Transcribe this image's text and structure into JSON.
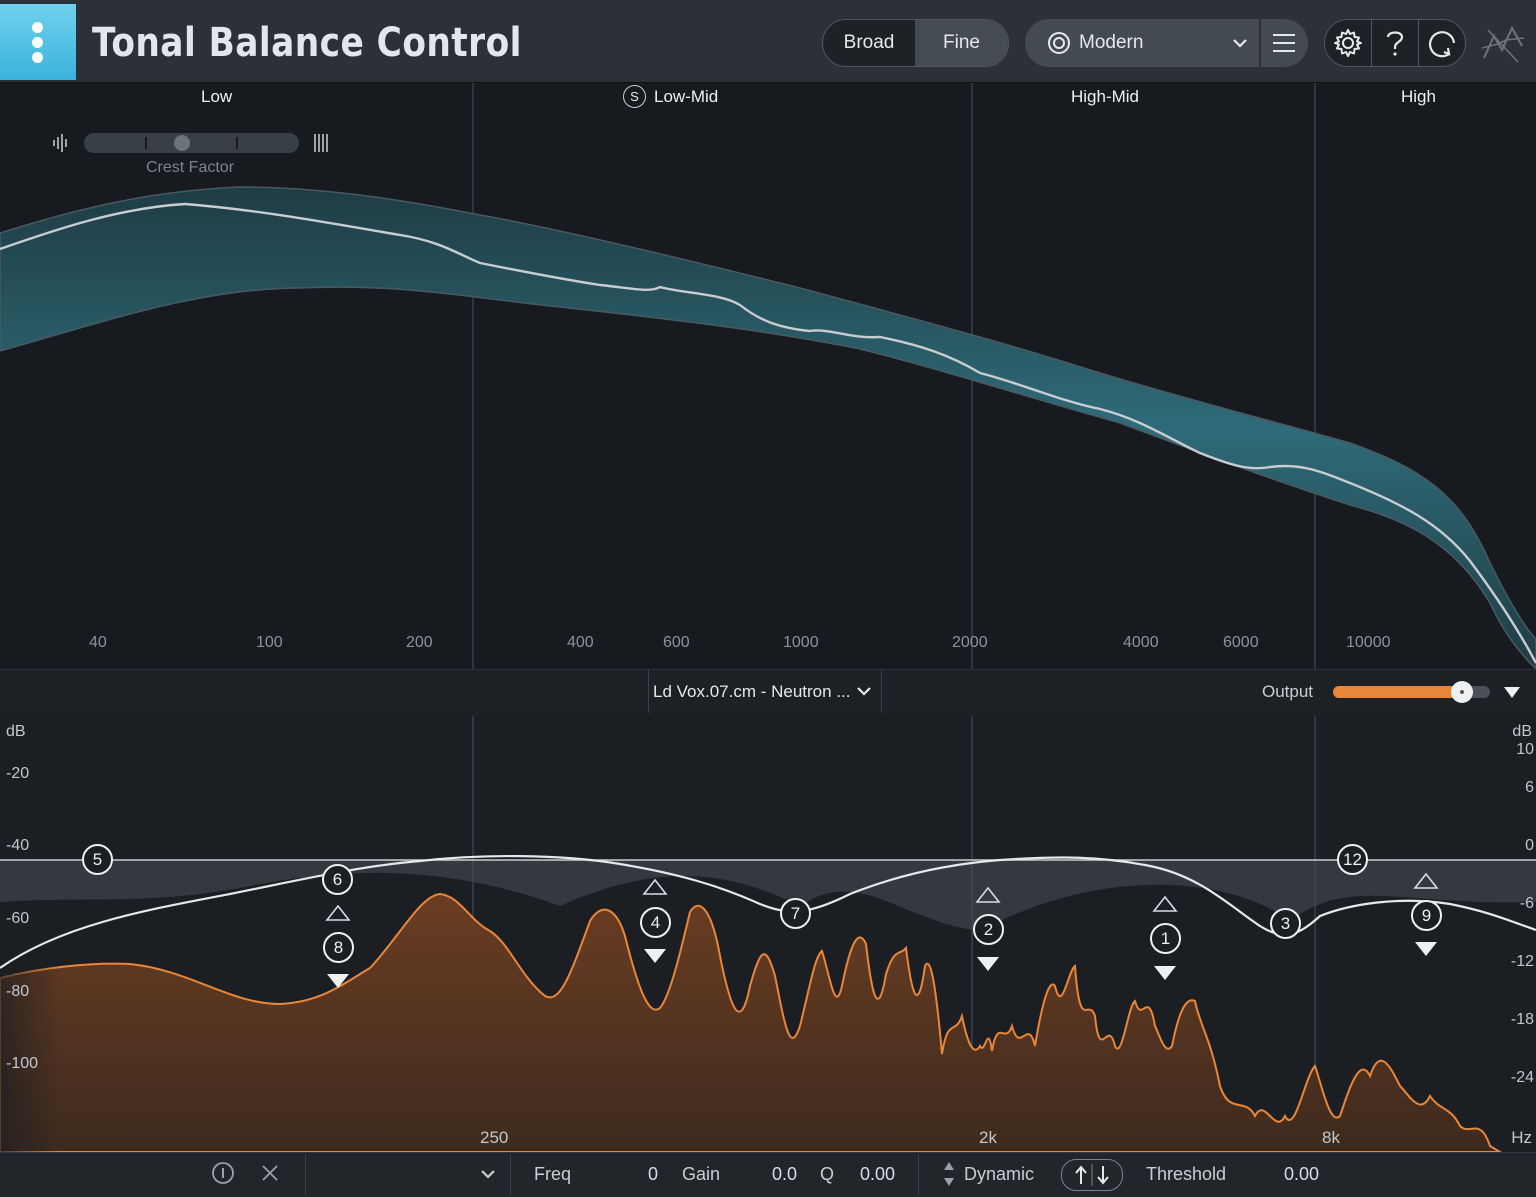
{
  "header": {
    "title": "Tonal Balance Control",
    "view_mode": {
      "options": [
        "Broad",
        "Fine"
      ],
      "selected": "Fine"
    },
    "target_preset": "Modern"
  },
  "bands": [
    "Low",
    "Low-Mid",
    "High-Mid",
    "High"
  ],
  "solo_badge": "S",
  "crest_factor": {
    "label": "Crest Factor",
    "value": 0.45
  },
  "freq_ticks": [
    "40",
    "100",
    "200",
    "400",
    "600",
    "1000",
    "2000",
    "4000",
    "6000",
    "10000"
  ],
  "track": {
    "name": "Ld Vox.07.cm - Neutron ..."
  },
  "output": {
    "label": "Output",
    "value": 0.82
  },
  "eq": {
    "db_left": {
      "label": "dB",
      "ticks": [
        "-20",
        "-40",
        "-60",
        "-80",
        "-100"
      ]
    },
    "db_right": {
      "label": "dB",
      "ticks": [
        "10",
        "6",
        "0",
        "-6",
        "-12",
        "-18",
        "-24"
      ]
    },
    "freq_labels": [
      "250",
      "2k",
      "8k"
    ],
    "hz_label": "Hz",
    "nodes": [
      "5",
      "6",
      "8",
      "4",
      "7",
      "2",
      "1",
      "3",
      "12",
      "9"
    ]
  },
  "footer": {
    "freq_label": "Freq",
    "freq_value": "0",
    "gain_label": "Gain",
    "gain_value": "0.0",
    "q_label": "Q",
    "q_value": "0.00",
    "dynamic_label": "Dynamic",
    "threshold_label": "Threshold",
    "threshold_value": "0.00"
  },
  "colors": {
    "accent": "#4cc4e8",
    "spectrum": "#e8873a",
    "band_fill": "#2d6a76"
  }
}
